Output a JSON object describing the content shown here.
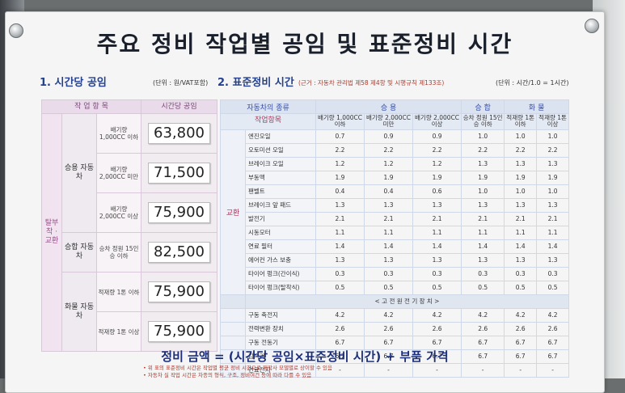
{
  "title": "주요 정비 작업별 공임 및 표준정비 시간",
  "section1": {
    "title": "1. 시간당 공임",
    "unit": "(단위 : 원/VAT포함)",
    "header_item": "작 업 항 목",
    "header_rate": "시간당 공임",
    "category": "탈부착 · 교환",
    "rows": [
      {
        "group": "승용 자동차",
        "sub": "배기량 1,000CC 이하",
        "rate": "63,800"
      },
      {
        "group": "",
        "sub": "배기량 2,000CC 미만",
        "rate": "71,500"
      },
      {
        "group": "",
        "sub": "배기량 2,000CC 이상",
        "rate": "75,900"
      },
      {
        "group": "승합 자동차",
        "sub": "승차 정원 15인승 이하",
        "rate": "82,500"
      },
      {
        "group": "화물 자동차",
        "sub": "적재량 1톤 이하",
        "rate": "75,900"
      },
      {
        "group": "",
        "sub": "적재량 1톤 이상",
        "rate": "75,900"
      }
    ]
  },
  "section2": {
    "title": "2. 표준정비 시간",
    "basis": "(근거 : 자동차 관리법 제58 제4항 및 시행규칙 제133조)",
    "unit": "(단위 : 시간/1.0 = 1시간)",
    "vehicle_type_label": "자동차의 종류",
    "work_item_label": "작업항목",
    "group_passenger": "승 용",
    "group_van": "승 합",
    "group_truck": "화 물",
    "columns": [
      "배기량 1,000CC 이하",
      "배기량 2,000CC 미만",
      "배기량 2,000CC 이상",
      "승차 정원 15인승 이하",
      "적재량 1톤 이하",
      "적재량 1톤 이상"
    ],
    "replace_label": "교환",
    "rows": [
      {
        "item": "엔진오일",
        "v": [
          "0.7",
          "0.9",
          "0.9",
          "1.0",
          "1.0",
          "1.0"
        ]
      },
      {
        "item": "오토미션 오일",
        "v": [
          "2.2",
          "2.2",
          "2.2",
          "2.2",
          "2.2",
          "2.2"
        ]
      },
      {
        "item": "브레이크 오일",
        "v": [
          "1.2",
          "1.2",
          "1.2",
          "1.3",
          "1.3",
          "1.3"
        ]
      },
      {
        "item": "부동액",
        "v": [
          "1.9",
          "1.9",
          "1.9",
          "1.9",
          "1.9",
          "1.9"
        ]
      },
      {
        "item": "팬벨트",
        "v": [
          "0.4",
          "0.4",
          "0.6",
          "1.0",
          "1.0",
          "1.0"
        ]
      },
      {
        "item": "브레이크 앞 패드",
        "v": [
          "1.3",
          "1.3",
          "1.3",
          "1.3",
          "1.3",
          "1.3"
        ]
      },
      {
        "item": "발전기",
        "v": [
          "2.1",
          "2.1",
          "2.1",
          "2.1",
          "2.1",
          "2.1"
        ]
      },
      {
        "item": "시동모터",
        "v": [
          "1.1",
          "1.1",
          "1.1",
          "1.1",
          "1.1",
          "1.1"
        ]
      },
      {
        "item": "연료 필터",
        "v": [
          "1.4",
          "1.4",
          "1.4",
          "1.4",
          "1.4",
          "1.4"
        ]
      },
      {
        "item": "에어컨 가스 보충",
        "v": [
          "1.3",
          "1.3",
          "1.3",
          "1.3",
          "1.3",
          "1.3"
        ]
      },
      {
        "item": "타이어 펑크(간이식)",
        "v": [
          "0.3",
          "0.3",
          "0.3",
          "0.3",
          "0.3",
          "0.3"
        ]
      },
      {
        "item": "타이어 펑크(탈착식)",
        "v": [
          "0.5",
          "0.5",
          "0.5",
          "0.5",
          "0.5",
          "0.5"
        ]
      }
    ],
    "hv_band": "< 고 전 원  전 기 장 치 >",
    "hv_rows": [
      {
        "item": "구동 축전지",
        "v": [
          "4.2",
          "4.2",
          "4.2",
          "4.2",
          "4.2",
          "4.2"
        ]
      },
      {
        "item": "전력변환 장치",
        "v": [
          "2.6",
          "2.6",
          "2.6",
          "2.6",
          "2.6",
          "2.6"
        ]
      },
      {
        "item": "구동 전동기",
        "v": [
          "6.7",
          "6.7",
          "6.7",
          "6.7",
          "6.7",
          "6.7"
        ]
      },
      {
        "item": "감속기",
        "v": [
          "6.7",
          "6.7",
          "6.7",
          "6.7",
          "6.7",
          "6.7"
        ]
      },
      {
        "item": "연료전지",
        "v": [
          "-",
          "-",
          "-",
          "-",
          "-",
          "-"
        ]
      }
    ]
  },
  "formula": "정비 금액 = (시간당 공임×표준정비 시간) + 부품 가격",
  "notes": [
    "• 위 표의 표준정비 시간은 작업별 평균 정비 시간으로 제작사 모델별로 상이할 수 있음",
    "• 자동차 실 작업 시간은 차종의 형식, 구조, 정비여건 등에 따라 다를 수 있음"
  ]
}
